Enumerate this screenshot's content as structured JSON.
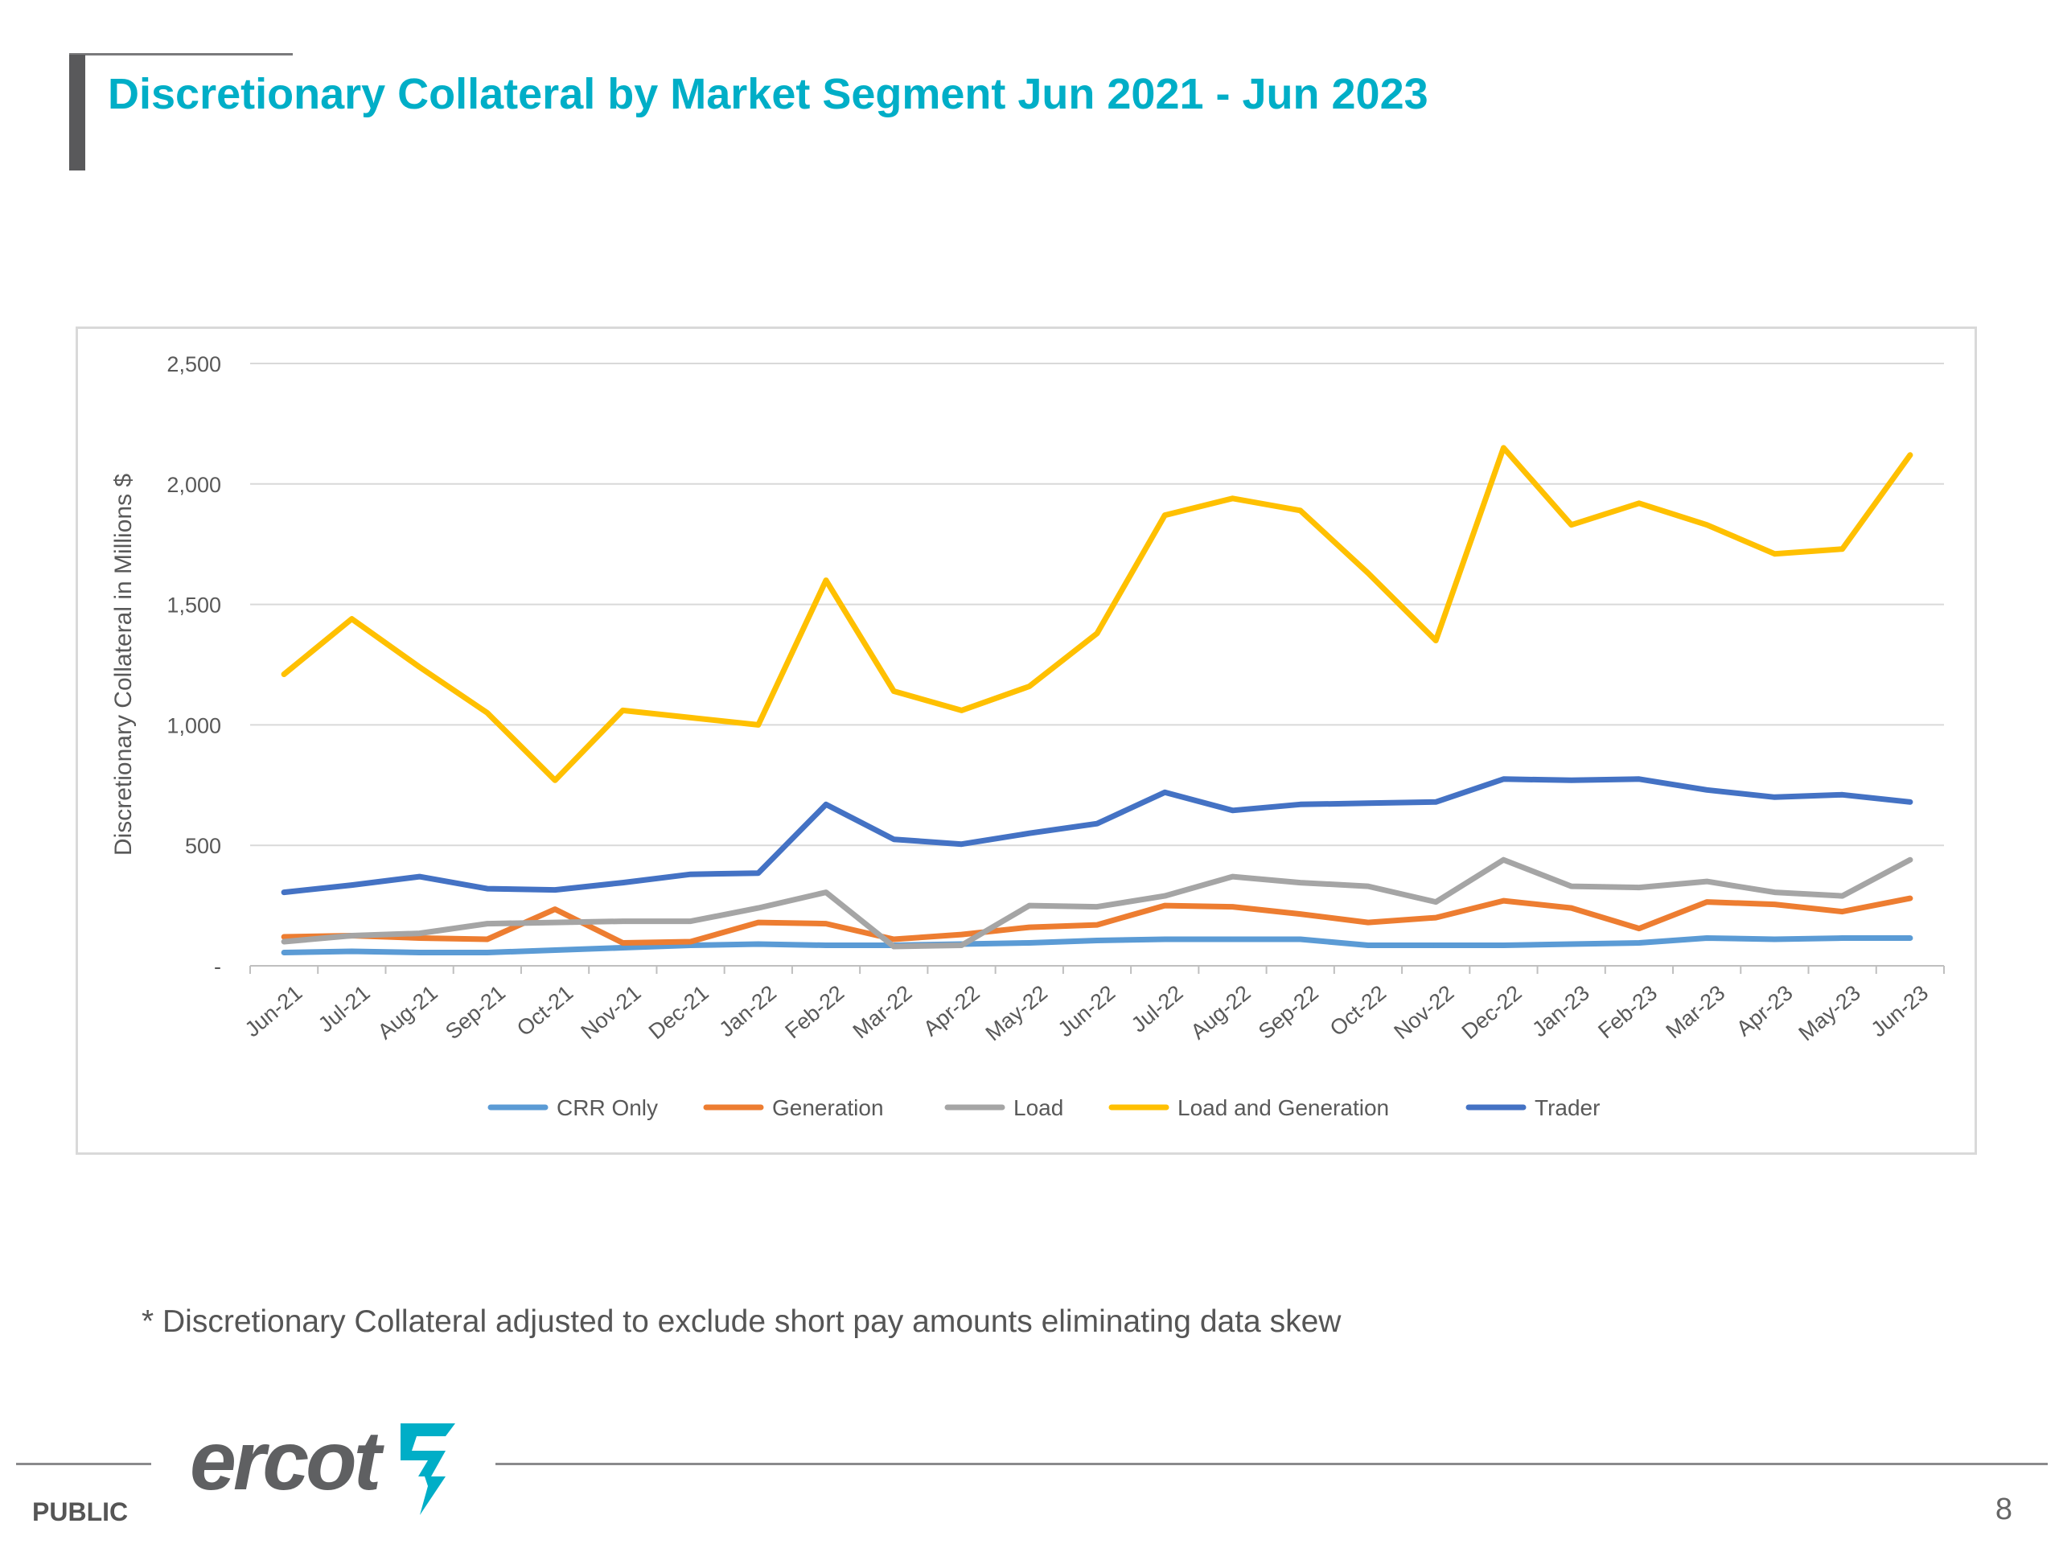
{
  "slide": {
    "title": "Discretionary Collateral by Market Segment Jun 2021 - Jun 2023",
    "footnote": "* Discretionary Collateral adjusted to exclude short pay amounts eliminating data skew",
    "classification": "PUBLIC",
    "page_number": "8",
    "logo_text": "ercot"
  },
  "colors": {
    "title": "#00aec7",
    "gridline": "#d9d9d9",
    "axis_text": "#595959"
  },
  "chart_data": {
    "type": "line",
    "ylabel": "Discretionary Collateral in Millions $",
    "xlabel": "",
    "ylim": [
      0,
      2500
    ],
    "yticks": [
      0,
      500,
      1000,
      1500,
      2000,
      2500
    ],
    "ytick_labels": [
      "-",
      "500",
      "1,000",
      "1,500",
      "2,000",
      "2,500"
    ],
    "grid": true,
    "legend_position": "bottom",
    "categories": [
      "Jun-21",
      "Jul-21",
      "Aug-21",
      "Sep-21",
      "Oct-21",
      "Nov-21",
      "Dec-21",
      "Jan-22",
      "Feb-22",
      "Mar-22",
      "Apr-22",
      "May-22",
      "Jun-22",
      "Jul-22",
      "Aug-22",
      "Sep-22",
      "Oct-22",
      "Nov-22",
      "Dec-22",
      "Jan-23",
      "Feb-23",
      "Mar-23",
      "Apr-23",
      "May-23",
      "Jun-23"
    ],
    "series": [
      {
        "name": "CRR Only",
        "color": "#5b9bd5",
        "values": [
          55,
          60,
          55,
          55,
          65,
          75,
          85,
          90,
          85,
          85,
          90,
          95,
          105,
          110,
          110,
          110,
          85,
          85,
          85,
          90,
          95,
          115,
          110,
          115,
          115
        ]
      },
      {
        "name": "Generation",
        "color": "#ed7d31",
        "values": [
          120,
          125,
          115,
          110,
          235,
          95,
          100,
          180,
          175,
          110,
          130,
          160,
          170,
          250,
          245,
          215,
          180,
          200,
          270,
          240,
          155,
          265,
          255,
          225,
          280
        ]
      },
      {
        "name": "Load",
        "color": "#a5a5a5",
        "values": [
          100,
          125,
          135,
          175,
          180,
          185,
          185,
          240,
          305,
          80,
          85,
          250,
          245,
          290,
          370,
          345,
          330,
          265,
          440,
          330,
          325,
          350,
          305,
          290,
          440
        ]
      },
      {
        "name": "Load and Generation",
        "color": "#ffc000",
        "values": [
          1210,
          1440,
          1240,
          1050,
          770,
          1060,
          1030,
          1000,
          1600,
          1140,
          1060,
          1160,
          1380,
          1870,
          1940,
          1890,
          1630,
          1350,
          2150,
          1830,
          1920,
          1830,
          1710,
          1730,
          2120
        ]
      },
      {
        "name": "Trader",
        "color": "#4472c4",
        "values": [
          305,
          335,
          370,
          320,
          315,
          345,
          380,
          385,
          670,
          525,
          505,
          550,
          590,
          720,
          645,
          670,
          675,
          680,
          775,
          770,
          775,
          730,
          700,
          710,
          680
        ]
      }
    ]
  }
}
